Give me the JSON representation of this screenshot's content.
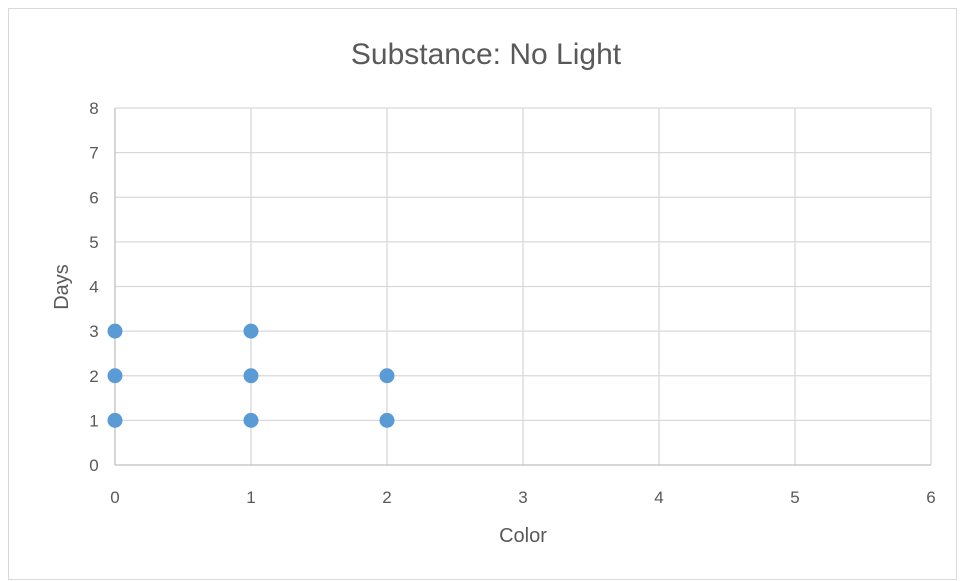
{
  "chart_data": {
    "type": "scatter",
    "title": "Substance: No Light",
    "xlabel": "Color",
    "ylabel": "Days",
    "xlim": [
      0,
      6
    ],
    "ylim": [
      0,
      8
    ],
    "x_ticks": [
      0,
      1,
      2,
      3,
      4,
      5,
      6
    ],
    "y_ticks": [
      0,
      1,
      2,
      3,
      4,
      5,
      6,
      7,
      8
    ],
    "grid": true,
    "legend": "none",
    "marker_color": "#5B9BD5",
    "series": [
      {
        "points": [
          {
            "x": 0,
            "y": 1
          },
          {
            "x": 0,
            "y": 2
          },
          {
            "x": 0,
            "y": 3
          },
          {
            "x": 1,
            "y": 1
          },
          {
            "x": 1,
            "y": 2
          },
          {
            "x": 1,
            "y": 3
          },
          {
            "x": 2,
            "y": 1
          },
          {
            "x": 2,
            "y": 2
          }
        ]
      }
    ]
  }
}
